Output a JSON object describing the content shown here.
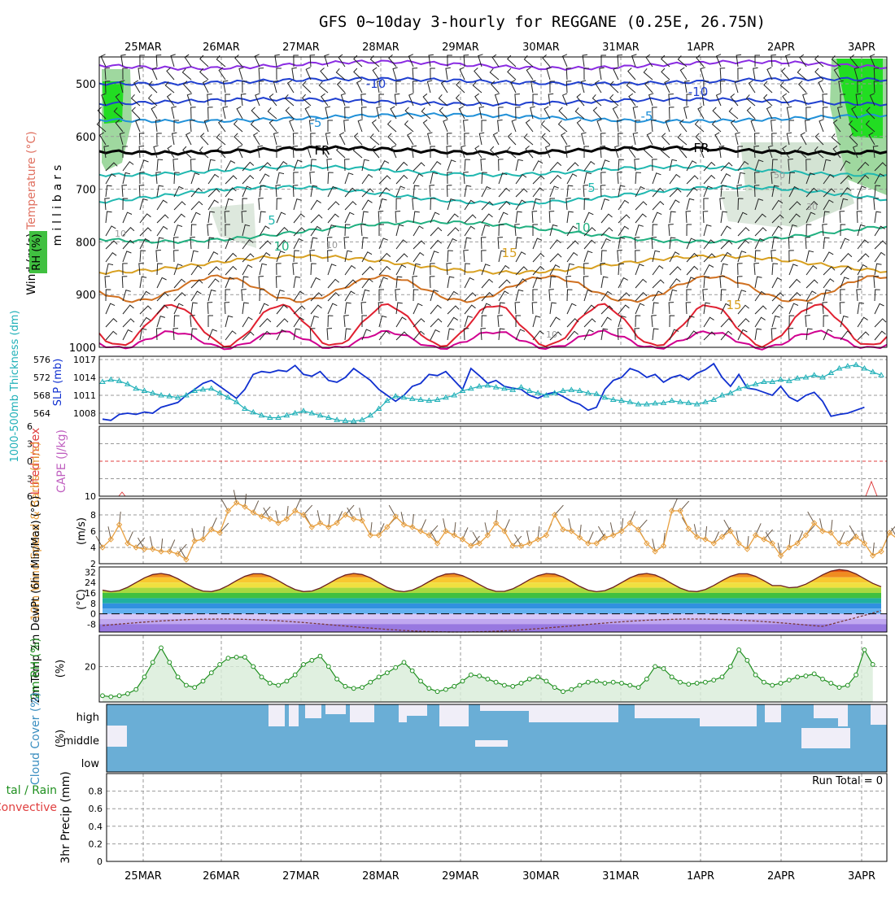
{
  "title": "GFS 0~10day 3-hourly for REGGANE (0.25E, 26.75N)",
  "days": [
    "25MAR",
    "26MAR",
    "27MAR",
    "28MAR",
    "29MAR",
    "30MAR",
    "31MAR",
    "1APR",
    "2APR",
    "3APR"
  ],
  "colors": {
    "temp_purple": "#8a2be2",
    "temp_blue": "#2040d0",
    "temp_cyan": "#2090d8",
    "freezing": "#000000",
    "temp_teal": "#20b8b0",
    "temp_green": "#20b080",
    "temp_gold": "#d8a020",
    "temp_orange": "#d07020",
    "temp_red": "#e02030",
    "temp_magenta": "#d00090",
    "slp": "#1030d0",
    "thickness": "#20b0b8",
    "wind10": "#e8a040",
    "rh_fill": "#d8ecd8",
    "rh_line": "#209020",
    "cloud_fill": "#6aaed6",
    "cloud_gap": "#f0eef8",
    "lifted": "#e04040",
    "cape": "#c060c0"
  },
  "chart_data": [
    {
      "type": "line",
      "panel": "upper-air",
      "ylabel_parts": [
        "Wind (m/s)",
        "Temperature (°C)",
        "RH (%)"
      ],
      "ylabel_vertical": "millibars",
      "y_ticks": [
        "500",
        "600",
        "700",
        "800",
        "900",
        "1000"
      ],
      "y_lim": [
        1000,
        450
      ],
      "contour_labels": [
        "-10",
        "-10",
        "-5",
        "-5",
        "FR",
        "FR",
        "5",
        "5",
        "10",
        "10",
        "15",
        "15",
        "10",
        "10",
        "10",
        "30",
        "50"
      ],
      "notes": "temperature contours, freezing level (FR), RH shading and wind barbs"
    },
    {
      "type": "line",
      "panel": "thickness-slp",
      "ylabel_left": "1000-500mb Thickness (dm)",
      "ylabel_right": "SLP (mb)",
      "left_ticks": [
        "576",
        "572",
        "568",
        "564"
      ],
      "right_ticks": [
        "1017",
        "1014",
        "1011",
        "1008"
      ],
      "series": [
        {
          "name": "SLP (mb)",
          "values": [
            1007,
            1006.8,
            1007.8,
            1008,
            1007.8,
            1008.2,
            1008,
            1009,
            1009.4,
            1009.8,
            1011,
            1012,
            1013,
            1013.5,
            1012.5,
            1011.5,
            1010.5,
            1012,
            1014.5,
            1015,
            1014.8,
            1015.2,
            1015,
            1016,
            1014.5,
            1014.2,
            1015,
            1013.5,
            1013.2,
            1014,
            1015.5,
            1014.5,
            1013.5,
            1012,
            1011,
            1010,
            1011,
            1012.5,
            1013,
            1014.5,
            1014.3,
            1015,
            1013.5,
            1012,
            1015.5,
            1014.3,
            1013,
            1013.5,
            1012.5,
            1012.2,
            1012,
            1011,
            1010.5,
            1011.2,
            1011.5,
            1010.8,
            1010,
            1009.5,
            1008.5,
            1009,
            1012,
            1013.5,
            1014,
            1015.5,
            1015,
            1014,
            1014.5,
            1013.2,
            1014,
            1014.4,
            1013.6,
            1014.7,
            1015.3,
            1016.3,
            1014,
            1012.5,
            1014.5,
            1012.2,
            1012,
            1011.5,
            1011,
            1012.5,
            1010.7,
            1010,
            1011,
            1011.5,
            1010,
            1007.5,
            1007.8,
            1008,
            1008.5,
            1009
          ]
        },
        {
          "name": "1000-500mb Thickness (dm)",
          "values": [
            571,
            571.5,
            571.2,
            570.5,
            569.5,
            569,
            568.5,
            568,
            567.8,
            567.5,
            568,
            569,
            569.3,
            569.5,
            568.5,
            567.5,
            566.5,
            565,
            564.2,
            563.5,
            563,
            563,
            563.5,
            564,
            564.5,
            564,
            563.5,
            563,
            562.5,
            562.3,
            562.2,
            562.5,
            563.5,
            565,
            566.8,
            567.8,
            567.5,
            567.2,
            567,
            566.8,
            567,
            567.5,
            568,
            569,
            569.5,
            570,
            570.2,
            569.8,
            569.5,
            569.2,
            569.8,
            569,
            568.5,
            568,
            568.5,
            569,
            569.2,
            569,
            568.5,
            568.3,
            567.5,
            567,
            566.8,
            566.5,
            566,
            566,
            566.2,
            566.3,
            566.8,
            566.5,
            566.3,
            566,
            566.5,
            567,
            568,
            568.5,
            569.5,
            570,
            570.5,
            571,
            571,
            571.5,
            571.2,
            571.8,
            572,
            572.5,
            572,
            573,
            574,
            574.5,
            574.8,
            574,
            573.2,
            572.5
          ]
        }
      ]
    },
    {
      "type": "line",
      "panel": "lifted-index-cape",
      "ylabel_left": "Lifted Index",
      "ylabel_right": "CAPE (J/kg)",
      "left_ticks": [
        "-6",
        "-3",
        "0",
        "3",
        "6"
      ],
      "right_ticks": [
        "10"
      ]
    },
    {
      "type": "line",
      "panel": "wind10m",
      "ylabel": "10m Wind Speed & Barbs (m/s)",
      "y_ticks": [
        "8",
        "6",
        "4",
        "2"
      ],
      "y_lim": [
        2,
        10
      ],
      "series": [
        {
          "name": "10m Wind Speed",
          "values": [
            4,
            5,
            6.8,
            4.5,
            4,
            3.8,
            3.8,
            3.5,
            3.5,
            3.2,
            2.5,
            4.8,
            5,
            6.2,
            5.8,
            8.5,
            9.5,
            9,
            8.3,
            7.8,
            7.5,
            7,
            7.5,
            8.5,
            8,
            6.5,
            7,
            6.5,
            7,
            8,
            7.5,
            7.3,
            5.5,
            5.5,
            6.5,
            7.8,
            6.8,
            6.5,
            6,
            5.5,
            4.5,
            6,
            5.5,
            5,
            4.2,
            4.5,
            5.5,
            7,
            6,
            4.2,
            4.2,
            4.5,
            5,
            5.5,
            8,
            6.2,
            6,
            5.2,
            4.5,
            4.5,
            5.2,
            5.5,
            6,
            7,
            6.2,
            4.5,
            3.5,
            4.2,
            8.5,
            8.5,
            6.3,
            5.3,
            5,
            4.5,
            5.3,
            6,
            4.5,
            3.8,
            5.5,
            5,
            4.5,
            3,
            4,
            4.5,
            5.5,
            7,
            6,
            5.8,
            4.5,
            4.5,
            5.3,
            4.5,
            3,
            3.5,
            5.8,
            5
          ]
        }
      ]
    },
    {
      "type": "area",
      "panel": "temp2m",
      "ylabel": "2m Temp 2m DewPt (6hr Min/Max) (°C)",
      "y_ticks": [
        "32",
        "24",
        "16",
        "8",
        "0",
        "-8"
      ],
      "y_lim": [
        -14,
        36
      ]
    },
    {
      "type": "area",
      "panel": "rh2m",
      "ylabel": "2m RH (%)",
      "y_ticks": [
        "20"
      ],
      "y_lim": [
        3,
        35
      ],
      "series": [
        {
          "name": "2m RH",
          "values": [
            6,
            5.5,
            6,
            7,
            9,
            15,
            22,
            29,
            22,
            15,
            11,
            10,
            13,
            17,
            21,
            24,
            24.5,
            24.5,
            20,
            15,
            12,
            11,
            13,
            16,
            21,
            23,
            25,
            20,
            14,
            10.5,
            9.5,
            10,
            12.5,
            15,
            17,
            19.5,
            22,
            18,
            13,
            9.5,
            8,
            9,
            10.5,
            13,
            16,
            15.5,
            14,
            12.5,
            11,
            10.5,
            12,
            14,
            15,
            13,
            10,
            8,
            9,
            11,
            12.5,
            13,
            12,
            12.5,
            12,
            11,
            10,
            14,
            20,
            19,
            15,
            12.5,
            11.5,
            12,
            12.5,
            13.5,
            15,
            20,
            28,
            23,
            16,
            12.5,
            11,
            12,
            13.5,
            15,
            15.5,
            16.5,
            14,
            12,
            10,
            11,
            16,
            28,
            21
          ]
        }
      ]
    },
    {
      "type": "bar",
      "panel": "cloud-cover",
      "ylabel": "Cloud Cover (%)",
      "categories": [
        "high",
        "middle",
        "low"
      ]
    },
    {
      "type": "bar",
      "panel": "precip",
      "ylabel": "3hr Precip (mm)",
      "ylabel_left": "Total / Rain Convective",
      "y_ticks": [
        "0.8",
        "0.6",
        "0.4",
        "0.2",
        "0"
      ],
      "y_lim": [
        0,
        1
      ],
      "annotation": "Run Total = 0",
      "values": []
    }
  ]
}
